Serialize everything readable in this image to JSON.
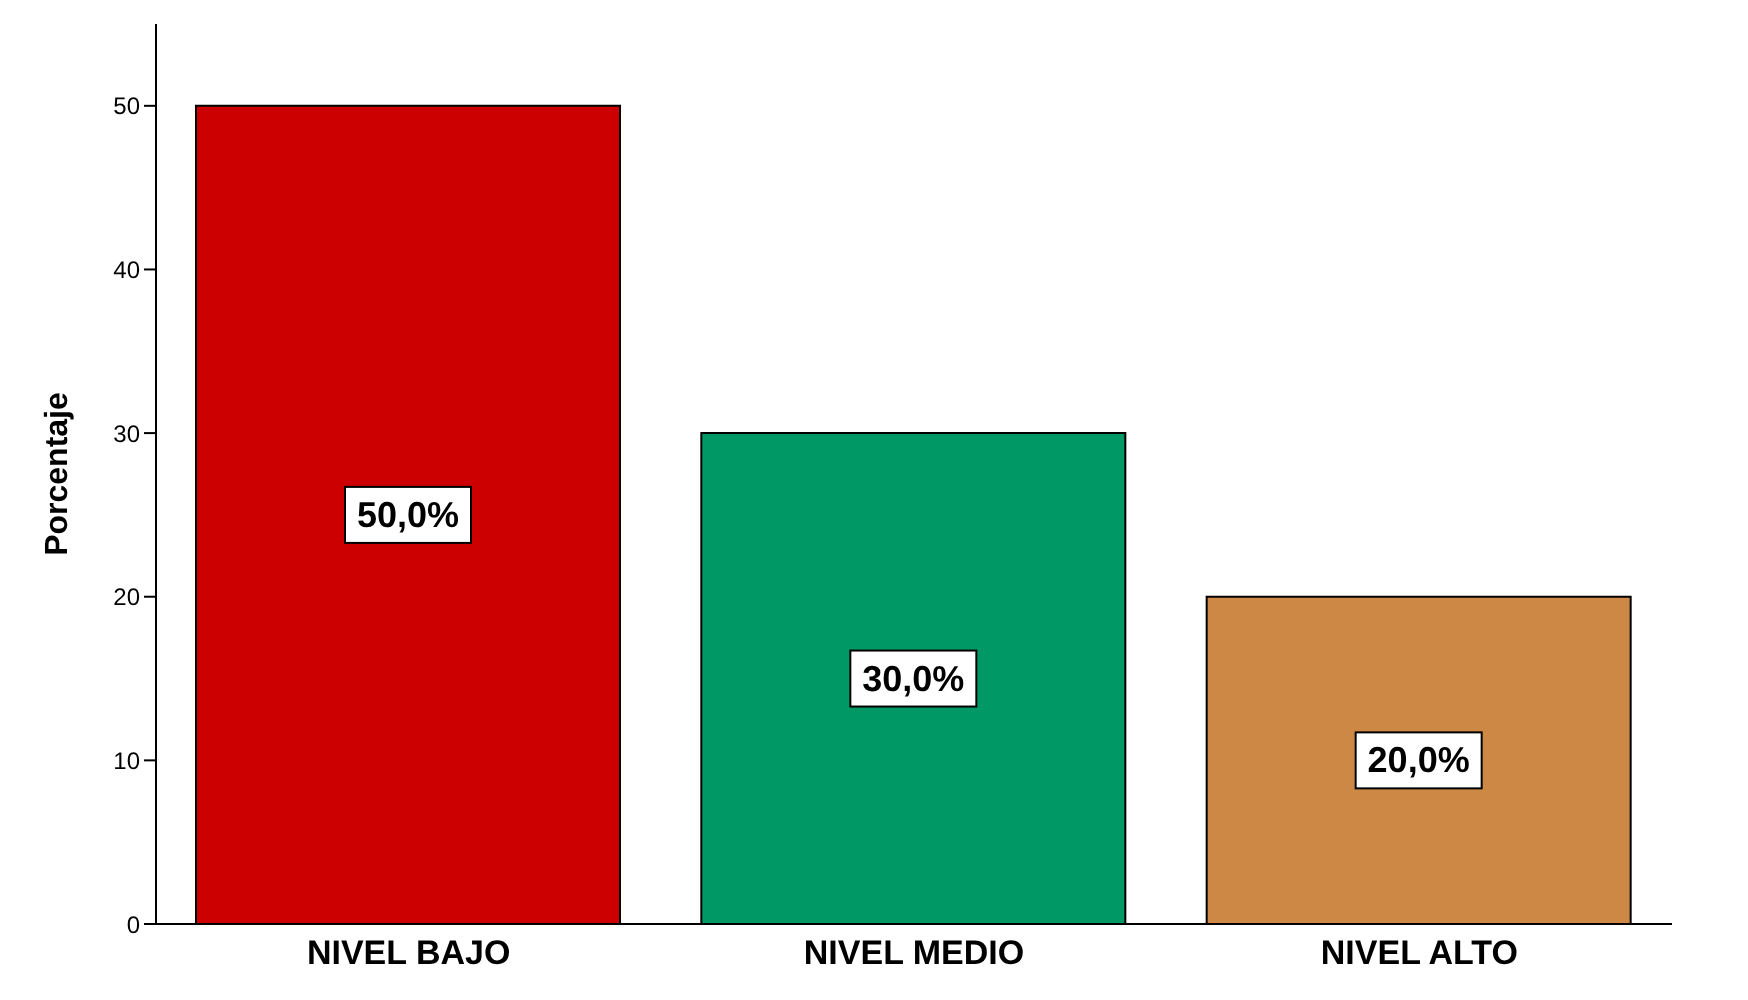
{
  "chart_data": {
    "type": "bar",
    "ylabel": "Porcentaje",
    "categories": [
      "NIVEL BAJO",
      "NIVEL MEDIO",
      "NIVEL ALTO"
    ],
    "values": [
      50,
      30,
      20
    ],
    "colors": [
      "#cc0000",
      "#009966",
      "#cc8844"
    ],
    "value_labels": [
      "50,0%",
      "30,0%",
      "20,0%"
    ],
    "ylim": [
      0,
      55
    ],
    "yticks": [
      0,
      10,
      20,
      30,
      40,
      50
    ],
    "grid": false,
    "legend": false
  }
}
